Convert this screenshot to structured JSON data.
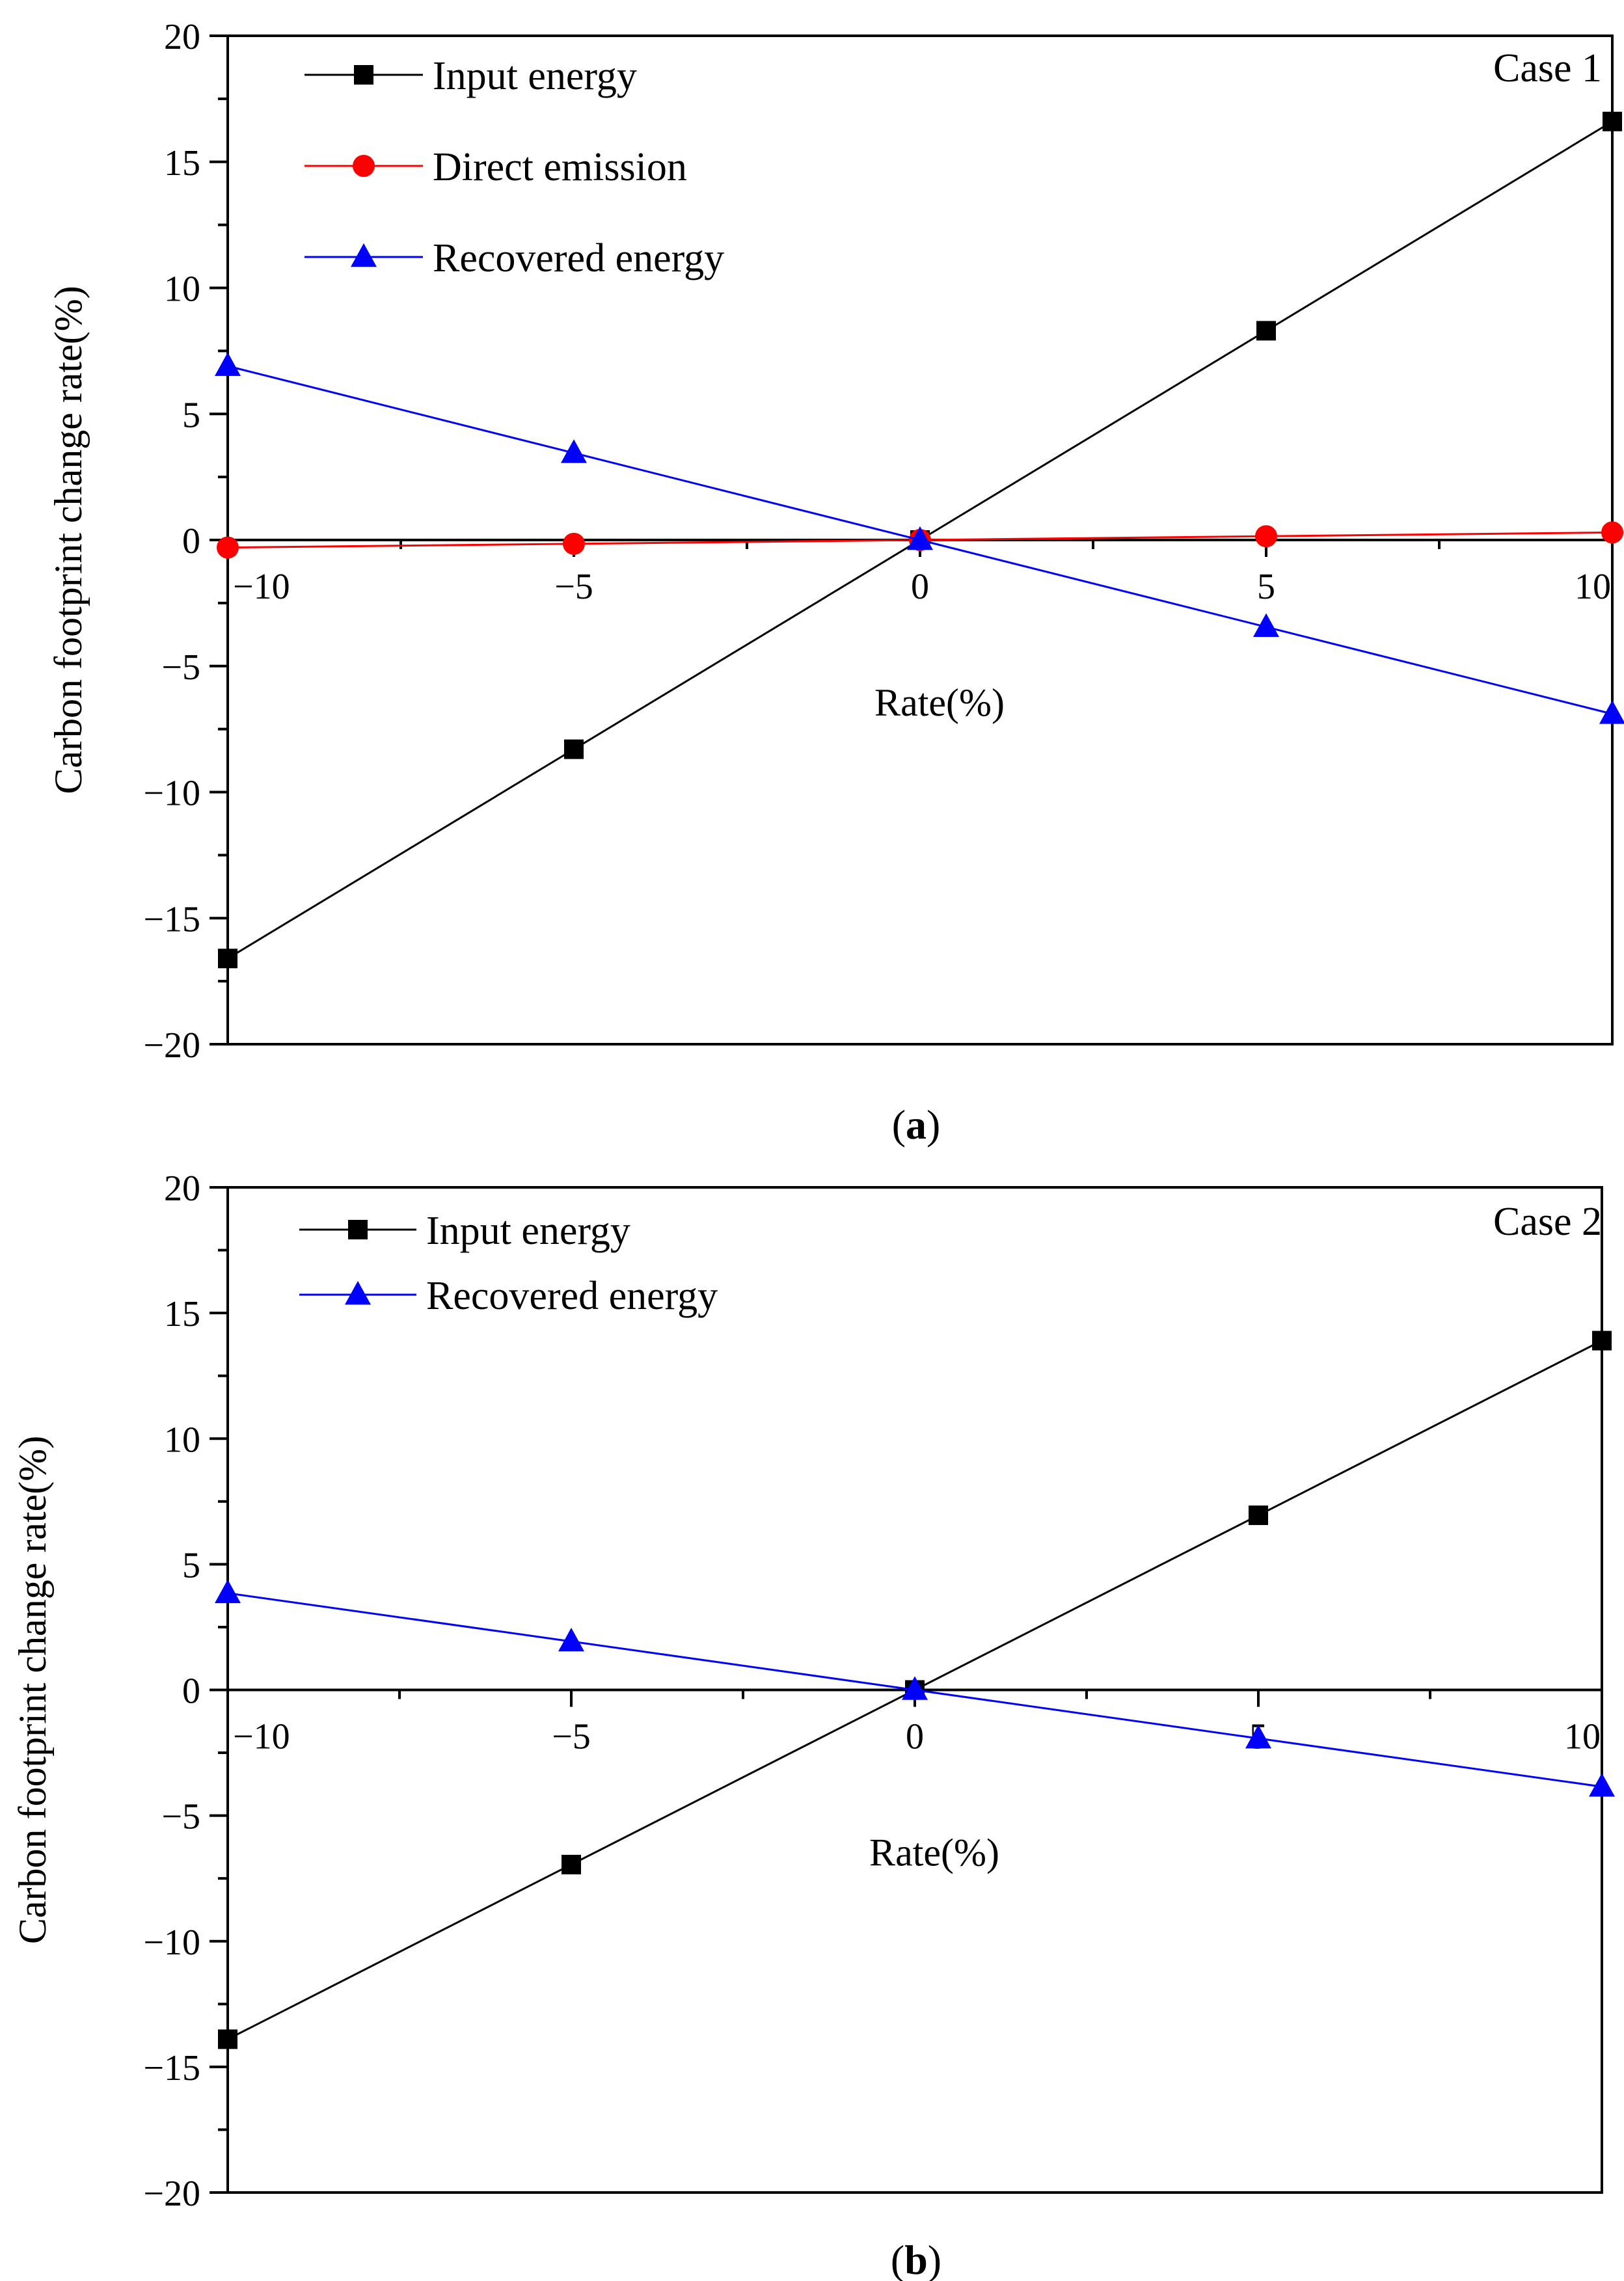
{
  "chart_data": [
    {
      "type": "line",
      "panel_caption": "a",
      "annotation": "Case 1",
      "xlabel": "Rate(%)",
      "ylabel": "Carbon footprint change rate(%)",
      "xlim": [
        -10,
        10
      ],
      "ylim": [
        -20,
        20
      ],
      "x": [
        -10,
        -5,
        0,
        5,
        10
      ],
      "xticks": [
        "−10",
        "−5",
        "0",
        "5",
        "10"
      ],
      "yticks": [
        "20",
        "15",
        "10",
        "5",
        "0",
        "−5",
        "−10",
        "−15",
        "−20"
      ],
      "legend_position": "top-left",
      "series": [
        {
          "name": "Input energy",
          "marker": "square",
          "color": "#000000",
          "values": [
            -16.6,
            -8.3,
            0,
            8.3,
            16.6
          ]
        },
        {
          "name": "Direct emission",
          "marker": "circle",
          "color": "#ff0000",
          "values": [
            -0.3,
            -0.15,
            0,
            0.15,
            0.3
          ]
        },
        {
          "name": "Recovered energy",
          "marker": "triangle",
          "color": "#0000ff",
          "values": [
            6.9,
            3.45,
            0,
            -3.45,
            -6.9
          ]
        }
      ]
    },
    {
      "type": "line",
      "panel_caption": "b",
      "annotation": "Case 2",
      "xlabel": "Rate(%)",
      "ylabel": "Carbon footprint change rate(%)",
      "xlim": [
        -10,
        10
      ],
      "ylim": [
        -20,
        20
      ],
      "x": [
        -10,
        -5,
        0,
        5,
        10
      ],
      "xticks": [
        "−10",
        "−5",
        "0",
        "5",
        "10"
      ],
      "yticks": [
        "20",
        "15",
        "10",
        "5",
        "0",
        "−5",
        "−10",
        "−15",
        "−20"
      ],
      "legend_position": "top-left",
      "series": [
        {
          "name": "Input energy",
          "marker": "square",
          "color": "#000000",
          "values": [
            -13.9,
            -6.95,
            0,
            6.95,
            13.9
          ]
        },
        {
          "name": "Recovered energy",
          "marker": "triangle",
          "color": "#0000ff",
          "values": [
            3.85,
            1.93,
            0,
            -1.93,
            -3.85
          ]
        }
      ]
    }
  ]
}
